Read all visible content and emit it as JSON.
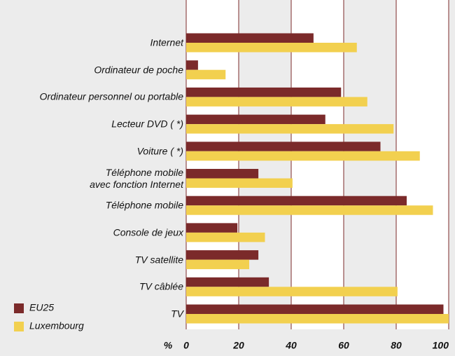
{
  "chart_data": {
    "type": "hbar",
    "categories": [
      "Internet",
      "Ordinateur de poche",
      "Ordinateur personnel ou portable",
      "Lecteur DVD ( *)",
      "Voiture ( *)",
      "Téléphone mobile\navec fonction Internet",
      "Téléphone mobile",
      "Console de jeux",
      "TV satellite",
      "TV câblée",
      "TV"
    ],
    "series": [
      {
        "name": "EU25",
        "color": "#7b2a2a",
        "values": [
          48.5,
          4.5,
          59,
          53,
          74,
          27.5,
          84,
          19.5,
          27.5,
          31.5,
          98
        ]
      },
      {
        "name": "Luxembourg",
        "color": "#f2d04f",
        "values": [
          65,
          15,
          69,
          79,
          89,
          40.5,
          94,
          30,
          24,
          80.5,
          100
        ]
      }
    ],
    "xlabel": "%",
    "xlim": [
      0,
      100
    ],
    "xticks": [
      0,
      20,
      40,
      60,
      80,
      100
    ],
    "grid": true,
    "legend": "lower left"
  }
}
